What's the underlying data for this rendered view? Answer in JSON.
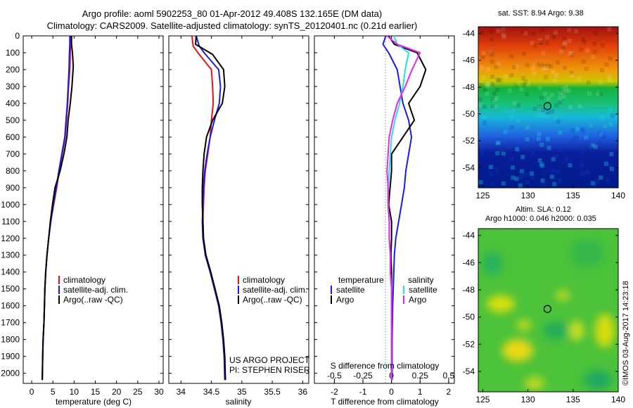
{
  "title_line1": "Argo profile: aoml 5902253_80 01-Apr-2012 49.408S 132.165E (DM data)",
  "title_line2": "Climatology: CARS2009. Satellite-adjusted climatology: synTS_20120401.nc (0.21d earlier)",
  "colors": {
    "climatology": "#ee1111",
    "satellite": "#1a1aee",
    "argo": "#000000",
    "argo_salinity": "#ee22ee",
    "satellite_salinity": "#22e0ee"
  },
  "chart_data": [
    {
      "type": "line",
      "name": "temperature-profile",
      "xlabel": "temperature (deg C)",
      "ylabel": "",
      "xlim": [
        -2,
        31
      ],
      "ylim": [
        2060,
        0
      ],
      "xticks": [
        "0",
        "5",
        "10",
        "15",
        "20",
        "25",
        "30"
      ],
      "yticks": [
        "0",
        "100",
        "200",
        "300",
        "400",
        "500",
        "600",
        "700",
        "800",
        "900",
        "1000",
        "1100",
        "1200",
        "1300",
        "1400",
        "1500",
        "1600",
        "1700",
        "1800",
        "1900",
        "2000"
      ],
      "legend": [
        "climatology",
        "satellite-adj. clim.",
        "Argo(..raw -QC)"
      ],
      "legend_position": "lower-center",
      "series": [
        {
          "name": "climatology",
          "x": [
            9.3,
            9.2,
            9.1,
            9.0,
            8.7,
            8.5,
            8.2,
            7.9,
            7.2,
            6.5,
            5.9,
            5.2,
            4.5,
            4.0,
            3.6,
            3.3,
            3.1,
            3.0,
            2.9,
            2.7,
            2.6,
            2.5
          ],
          "y": [
            0,
            50,
            100,
            200,
            300,
            400,
            500,
            600,
            700,
            800,
            900,
            1000,
            1100,
            1200,
            1300,
            1400,
            1500,
            1600,
            1700,
            1800,
            1900,
            2040
          ]
        },
        {
          "name": "satellite-adj. clim.",
          "x": [
            9.0,
            9.0,
            8.9,
            8.8,
            8.6,
            8.4,
            8.1,
            7.8,
            7.1,
            6.4,
            5.8,
            5.1,
            4.5,
            4.0,
            3.6,
            3.3,
            3.1,
            3.0,
            2.9,
            2.7,
            2.6,
            2.5
          ],
          "y": [
            0,
            50,
            100,
            200,
            300,
            400,
            500,
            600,
            700,
            800,
            900,
            1000,
            1100,
            1200,
            1300,
            1400,
            1500,
            1600,
            1700,
            1800,
            1900,
            2040
          ]
        },
        {
          "name": "Argo(..raw -QC)",
          "x": [
            9.4,
            9.4,
            9.6,
            9.8,
            9.5,
            9.1,
            8.6,
            8.3,
            7.6,
            6.7,
            5.5,
            4.9,
            4.4,
            4.0,
            3.6,
            3.3,
            3.1,
            3.0,
            2.9,
            2.7,
            2.6,
            2.5
          ],
          "y": [
            0,
            50,
            100,
            180,
            300,
            400,
            500,
            600,
            700,
            800,
            900,
            1000,
            1100,
            1200,
            1300,
            1400,
            1500,
            1600,
            1700,
            1800,
            1900,
            2040
          ]
        }
      ]
    },
    {
      "type": "line",
      "name": "salinity-profile",
      "xlabel": "salinity",
      "ylabel": "",
      "xlim": [
        33.8,
        36.1
      ],
      "ylim": [
        2060,
        0
      ],
      "xticks": [
        "34",
        "34.5",
        "35",
        "35.5",
        "36"
      ],
      "legend": [
        "climatology",
        "satellite-adj. clim.",
        "Argo(..raw -QC)"
      ],
      "legend_position": "lower-center",
      "annotation": [
        "US ARGO PROJECT",
        "PI: STEPHEN RISER"
      ],
      "series": [
        {
          "name": "climatology",
          "x": [
            34.18,
            34.2,
            34.3,
            34.5,
            34.52,
            34.53,
            34.5,
            34.48,
            34.44,
            34.4,
            34.38,
            34.37,
            34.36,
            34.37,
            34.4,
            34.48,
            34.55,
            34.62,
            34.66,
            34.69,
            34.71,
            34.73
          ],
          "y": [
            0,
            60,
            110,
            200,
            300,
            400,
            500,
            600,
            700,
            800,
            900,
            1000,
            1100,
            1200,
            1300,
            1400,
            1500,
            1600,
            1700,
            1800,
            1900,
            2040
          ]
        },
        {
          "name": "satellite-adj. clim.",
          "x": [
            34.25,
            34.3,
            34.38,
            34.62,
            34.65,
            34.63,
            34.55,
            34.48,
            34.43,
            34.39,
            34.37,
            34.36,
            34.35,
            34.36,
            34.4,
            34.48,
            34.55,
            34.62,
            34.66,
            34.69,
            34.71,
            34.72
          ],
          "y": [
            0,
            60,
            100,
            200,
            300,
            400,
            500,
            600,
            700,
            800,
            900,
            1000,
            1100,
            1200,
            1300,
            1400,
            1500,
            1600,
            1700,
            1800,
            1900,
            2040
          ]
        },
        {
          "name": "Argo(..raw -QC)",
          "x": [
            34.25,
            34.24,
            34.52,
            34.7,
            34.72,
            34.68,
            34.52,
            34.42,
            34.38,
            34.36,
            34.35,
            34.35,
            34.36,
            34.37,
            34.41,
            34.49,
            34.56,
            34.63,
            34.67,
            34.7,
            34.72,
            34.73
          ],
          "y": [
            0,
            50,
            110,
            200,
            300,
            400,
            500,
            600,
            700,
            800,
            900,
            1000,
            1100,
            1200,
            1300,
            1400,
            1500,
            1600,
            1700,
            1800,
            1900,
            2040
          ]
        }
      ]
    },
    {
      "type": "line",
      "name": "difference-profile",
      "xlabel": "T difference from climatology",
      "top_xlabel": "S difference from climatology",
      "xlim": [
        -2.7,
        2.2
      ],
      "ylim": [
        2060,
        0
      ],
      "xticks": [
        "-2",
        "-1",
        "0",
        "1",
        "2"
      ],
      "top_xticks": [
        "-0.5",
        "-0.25",
        "0",
        "0.25",
        "0.5"
      ],
      "legend_headers": [
        "temperature",
        "salinity"
      ],
      "legend": [
        "satellite",
        "Argo",
        "satellite",
        "Argo"
      ],
      "legend_position": "lower-center",
      "series": [
        {
          "name": "temperature satellite",
          "x": [
            -0.2,
            -0.3,
            -0.1,
            0.2,
            0.3,
            0.4,
            0.6,
            0.7,
            0.6,
            0.5,
            0.45,
            0.35,
            0.25,
            0.15,
            0.1,
            0.08,
            0.06,
            0.04,
            0.03,
            0.02,
            0.02,
            0.02
          ],
          "y": [
            0,
            50,
            100,
            200,
            300,
            400,
            500,
            600,
            700,
            800,
            900,
            1000,
            1100,
            1200,
            1300,
            1400,
            1500,
            1600,
            1700,
            1800,
            1900,
            2040
          ]
        },
        {
          "name": "temperature Argo",
          "x": [
            -0.1,
            0.1,
            0.9,
            1.2,
            1.0,
            0.6,
            0.8,
            0.4,
            0.0,
            0.0,
            -0.05,
            -0.1,
            0.0,
            0.0,
            -0.02,
            0.0,
            0.0,
            0.0,
            0.0,
            0.0,
            0.0,
            0.0
          ],
          "y": [
            0,
            50,
            100,
            200,
            300,
            400,
            500,
            600,
            700,
            800,
            900,
            1000,
            1100,
            1200,
            1300,
            1400,
            1500,
            1600,
            1700,
            1800,
            1900,
            2040
          ]
        },
        {
          "name": "salinity satellite",
          "x": [
            0.02,
            0.05,
            0.15,
            0.12,
            0.1,
            0.07,
            0.03,
            0.0,
            -0.01,
            -0.02,
            -0.03,
            -0.03,
            -0.02,
            -0.02,
            -0.01,
            -0.01,
            0.0,
            0.0,
            0.0,
            0.0,
            0.0,
            0.0
          ],
          "y": [
            0,
            50,
            100,
            200,
            300,
            400,
            500,
            600,
            700,
            800,
            900,
            1000,
            1100,
            1200,
            1300,
            1400,
            1500,
            1600,
            1700,
            1800,
            1900,
            2040
          ]
        },
        {
          "name": "salinity Argo",
          "x": [
            -0.04,
            0.05,
            0.25,
            0.18,
            0.12,
            0.05,
            0.01,
            -0.02,
            -0.03,
            -0.04,
            -0.03,
            -0.03,
            -0.02,
            -0.02,
            -0.01,
            -0.01,
            0.0,
            0.0,
            0.0,
            0.0,
            0.0,
            0.0
          ],
          "y": [
            0,
            50,
            100,
            200,
            300,
            400,
            500,
            600,
            700,
            800,
            900,
            1000,
            1100,
            1200,
            1300,
            1400,
            1500,
            1600,
            1700,
            1800,
            1900,
            2040
          ]
        }
      ]
    },
    {
      "type": "heatmap",
      "name": "sst-map",
      "title": "sat. SST: 8.94  Argo: 9.38",
      "xlim": [
        124.5,
        140
      ],
      "ylim": [
        -55.5,
        -43.5
      ],
      "xticks": [
        "125",
        "130",
        "135",
        "140"
      ],
      "yticks": [
        "-44",
        "-46",
        "-48",
        "-50",
        "-52",
        "-54"
      ],
      "marker": {
        "lon": 132.165,
        "lat": -49.408
      }
    },
    {
      "type": "heatmap",
      "name": "sla-map",
      "title": "Altim. SLA: 0.12",
      "subtitle": "Argo h1000: 0.046 h2000: 0.035",
      "xlim": [
        124.5,
        140
      ],
      "ylim": [
        -55.5,
        -43.5
      ],
      "xticks": [
        "125",
        "130",
        "135",
        "140"
      ],
      "yticks": [
        "-44",
        "-46",
        "-48",
        "-50",
        "-52",
        "-54"
      ],
      "marker": {
        "lon": 132.165,
        "lat": -49.408
      }
    }
  ],
  "stamp": "©IMOS 03-Aug-2017 14:23:18"
}
